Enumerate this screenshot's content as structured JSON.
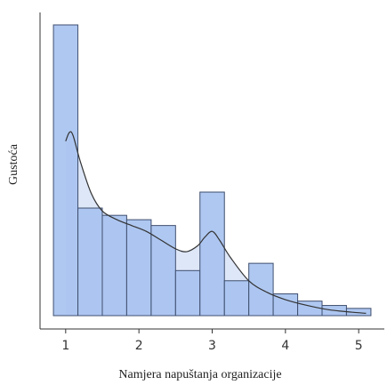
{
  "chart_data": {
    "type": "histogram",
    "xlabel": "Namjera napuštanja organizacije",
    "ylabel": "Gustoća",
    "xlim": [
      0.65,
      5.35
    ],
    "ylim": [
      0,
      1.0
    ],
    "x_ticks": [
      1,
      2,
      3,
      4,
      5
    ],
    "y_ticks_shown": false,
    "grid": false,
    "bin_width": 0.333,
    "bins": [
      {
        "start": 0.833,
        "end": 1.167,
        "density": 1.0
      },
      {
        "start": 1.167,
        "end": 1.5,
        "density": 0.37
      },
      {
        "start": 1.5,
        "end": 1.833,
        "density": 0.345
      },
      {
        "start": 1.833,
        "end": 2.167,
        "density": 0.33
      },
      {
        "start": 2.167,
        "end": 2.5,
        "density": 0.31
      },
      {
        "start": 2.5,
        "end": 2.833,
        "density": 0.155
      },
      {
        "start": 2.833,
        "end": 3.167,
        "density": 0.425
      },
      {
        "start": 3.167,
        "end": 3.5,
        "density": 0.12
      },
      {
        "start": 3.5,
        "end": 3.833,
        "density": 0.18
      },
      {
        "start": 3.833,
        "end": 4.167,
        "density": 0.075
      },
      {
        "start": 4.167,
        "end": 4.5,
        "density": 0.05
      },
      {
        "start": 4.5,
        "end": 4.833,
        "density": 0.035
      },
      {
        "start": 4.833,
        "end": 5.167,
        "density": 0.025
      }
    ],
    "density_curve": {
      "x": [
        1.0,
        1.05,
        1.1,
        1.2,
        1.35,
        1.5,
        1.7,
        1.9,
        2.1,
        2.3,
        2.5,
        2.65,
        2.8,
        2.9,
        3.0,
        3.1,
        3.25,
        3.5,
        3.75,
        4.0,
        4.3,
        4.6,
        4.9,
        5.1
      ],
      "y": [
        0.6,
        0.63,
        0.62,
        0.53,
        0.42,
        0.36,
        0.33,
        0.31,
        0.29,
        0.26,
        0.23,
        0.22,
        0.24,
        0.27,
        0.29,
        0.26,
        0.2,
        0.12,
        0.08,
        0.055,
        0.035,
        0.02,
        0.012,
        0.008
      ]
    },
    "colors": {
      "bar_fill": "#a8c3f0",
      "bar_stroke": "#3f4f6f",
      "area_fill": "#dde7f8",
      "curve": "#333333",
      "axis": "#333333"
    }
  }
}
